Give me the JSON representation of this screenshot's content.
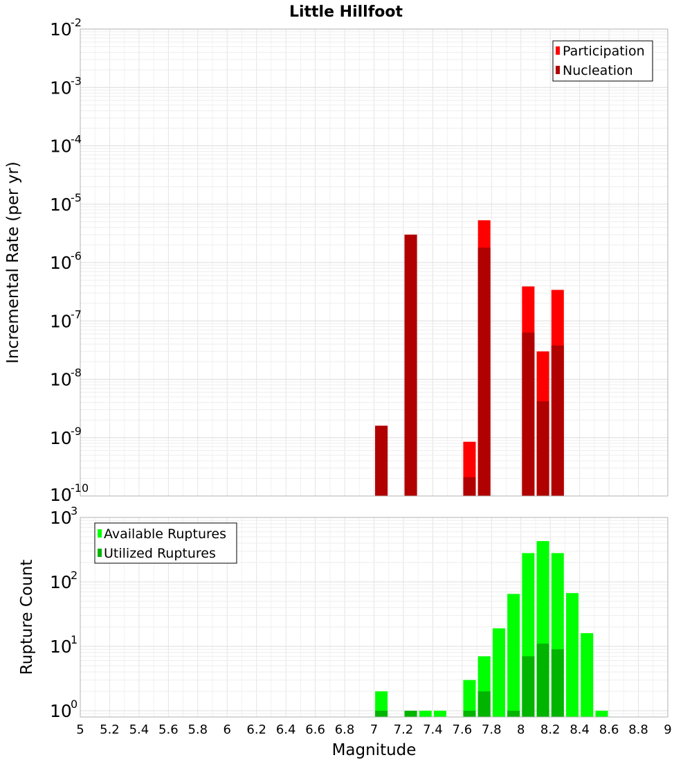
{
  "chart_data": [
    {
      "type": "bar",
      "title": "Little Hillfoot",
      "ylabel": "Incremental Rate (per yr)",
      "xlabel": "",
      "yscale": "log",
      "ylim": [
        1e-10,
        0.01
      ],
      "xlim": [
        5,
        9
      ],
      "legend_position": "top-right",
      "grid": true,
      "series": [
        {
          "name": "Participation",
          "color": "#ff0000",
          "points": [
            {
              "x": 7.05,
              "y": 1.6e-09
            },
            {
              "x": 7.25,
              "y": 3e-06
            },
            {
              "x": 7.65,
              "y": 8.5e-10
            },
            {
              "x": 7.75,
              "y": 5.3e-06
            },
            {
              "x": 8.05,
              "y": 3.9e-07
            },
            {
              "x": 8.15,
              "y": 3e-08
            },
            {
              "x": 8.25,
              "y": 3.4e-07
            }
          ]
        },
        {
          "name": "Nucleation",
          "color": "#b00000",
          "points": [
            {
              "x": 7.05,
              "y": 1.6e-09
            },
            {
              "x": 7.25,
              "y": 3e-06
            },
            {
              "x": 7.65,
              "y": 2.1e-10
            },
            {
              "x": 7.75,
              "y": 1.8e-06
            },
            {
              "x": 8.05,
              "y": 6.3e-08
            },
            {
              "x": 8.15,
              "y": 4.2e-09
            },
            {
              "x": 8.25,
              "y": 3.8e-08
            }
          ]
        }
      ]
    },
    {
      "type": "bar",
      "title": "",
      "ylabel": "Rupture Count",
      "xlabel": "Magnitude",
      "yscale": "log",
      "ylim": [
        0.8,
        1000
      ],
      "xlim": [
        5,
        9
      ],
      "legend_position": "top-left",
      "grid": true,
      "series": [
        {
          "name": "Available Ruptures",
          "color": "#00ff00",
          "points": [
            {
              "x": 7.05,
              "y": 2
            },
            {
              "x": 7.25,
              "y": 1
            },
            {
              "x": 7.35,
              "y": 1
            },
            {
              "x": 7.45,
              "y": 1
            },
            {
              "x": 7.65,
              "y": 3
            },
            {
              "x": 7.75,
              "y": 7
            },
            {
              "x": 7.85,
              "y": 19
            },
            {
              "x": 7.95,
              "y": 65
            },
            {
              "x": 8.05,
              "y": 280
            },
            {
              "x": 8.15,
              "y": 430
            },
            {
              "x": 8.25,
              "y": 280
            },
            {
              "x": 8.35,
              "y": 67
            },
            {
              "x": 8.45,
              "y": 16
            },
            {
              "x": 8.55,
              "y": 1
            }
          ]
        },
        {
          "name": "Utilized Ruptures",
          "color": "#00b400",
          "points": [
            {
              "x": 7.05,
              "y": 1
            },
            {
              "x": 7.25,
              "y": 1
            },
            {
              "x": 7.65,
              "y": 1
            },
            {
              "x": 7.75,
              "y": 2
            },
            {
              "x": 7.95,
              "y": 1
            },
            {
              "x": 8.05,
              "y": 7
            },
            {
              "x": 8.15,
              "y": 11
            },
            {
              "x": 8.25,
              "y": 9
            }
          ]
        }
      ]
    }
  ],
  "x_ticks": [
    "5",
    "5.2",
    "5.4",
    "5.6",
    "5.8",
    "6",
    "6.2",
    "6.4",
    "6.6",
    "6.8",
    "7",
    "7.2",
    "7.4",
    "7.6",
    "7.8",
    "8",
    "8.2",
    "8.4",
    "8.6",
    "8.8",
    "9"
  ],
  "top_y_ticks": [
    {
      "value": 0.01,
      "base": "10",
      "exp": "-2"
    },
    {
      "value": 0.001,
      "base": "10",
      "exp": "-3"
    },
    {
      "value": 0.0001,
      "base": "10",
      "exp": "-4"
    },
    {
      "value": 1e-05,
      "base": "10",
      "exp": "-5"
    },
    {
      "value": 1e-06,
      "base": "10",
      "exp": "-6"
    },
    {
      "value": 1e-07,
      "base": "10",
      "exp": "-7"
    },
    {
      "value": 1e-08,
      "base": "10",
      "exp": "-8"
    },
    {
      "value": 1e-09,
      "base": "10",
      "exp": "-9"
    },
    {
      "value": 1e-10,
      "base": "10",
      "exp": "-10"
    }
  ],
  "bottom_y_ticks": [
    {
      "value": 1000,
      "base": "10",
      "exp": "3"
    },
    {
      "value": 100,
      "base": "10",
      "exp": "2"
    },
    {
      "value": 10,
      "base": "10",
      "exp": "1"
    },
    {
      "value": 1,
      "base": "10",
      "exp": "0"
    }
  ]
}
